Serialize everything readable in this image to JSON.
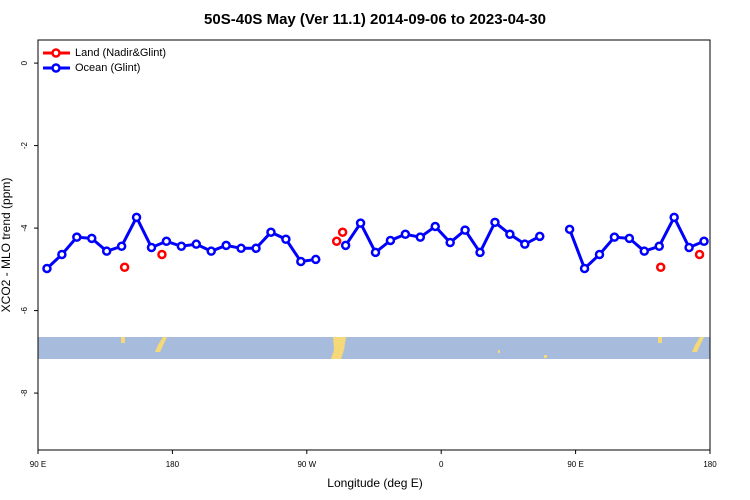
{
  "chart_data": {
    "type": "line",
    "title": "50S-40S May (Ver 11.1)   2014-09-06 to 2023-04-30",
    "x_label": "Longitude (deg E)",
    "y_label": "XCO2 - MLO trend (ppm)",
    "xlim": [
      90,
      540
    ],
    "ylim": [
      0.56,
      -9.38
    ],
    "xticks": [
      {
        "value": 90,
        "label": "90 E"
      },
      180,
      {
        "value": 270,
        "label": "90 W"
      },
      {
        "value": 360,
        "label": "0"
      },
      {
        "value": 450,
        "label": "90 E"
      },
      {
        "value": 540,
        "label": "180"
      }
    ],
    "yticks": [
      0,
      -2,
      -4,
      -6,
      -8
    ],
    "legend": "top-left",
    "series": [
      {
        "name": "Land (Nadir&Glint)",
        "color": "#ff0000",
        "mode": "markers",
        "x": [
          148,
          173,
          290,
          294,
          507,
          533
        ],
        "values": [
          -4.95,
          -4.64,
          -4.32,
          -4.1,
          -4.95,
          -4.64
        ]
      },
      {
        "name": "Ocean (Glint)",
        "color": "#0000ff",
        "mode": "lines+markers",
        "x": [
          96,
          106,
          116,
          126,
          136,
          146,
          156,
          166,
          176,
          186,
          196,
          206,
          216,
          226,
          236,
          246,
          256,
          266,
          276,
          286,
          296,
          306,
          316,
          326,
          336,
          346,
          356,
          366,
          376,
          386,
          396,
          406,
          416,
          426,
          436,
          446,
          456,
          466,
          476,
          486,
          496,
          506,
          516,
          526,
          536
        ],
        "values": [
          -4.98,
          -4.64,
          -4.22,
          -4.25,
          -4.56,
          -4.44,
          -3.74,
          -4.47,
          -4.32,
          -4.44,
          -4.39,
          -4.56,
          -4.42,
          -4.49,
          -4.49,
          -4.1,
          -4.27,
          -4.81,
          -4.76,
          null,
          -4.42,
          -3.88,
          -4.59,
          -4.3,
          -4.15,
          -4.22,
          -3.96,
          -4.35,
          -4.05,
          -4.59,
          -3.86,
          -4.15,
          -4.39,
          -4.2,
          null,
          -4.03,
          -4.98,
          -4.64,
          -4.22,
          -4.25,
          -4.56,
          -4.44,
          -3.74,
          -4.47,
          -4.32
        ]
      }
    ]
  }
}
